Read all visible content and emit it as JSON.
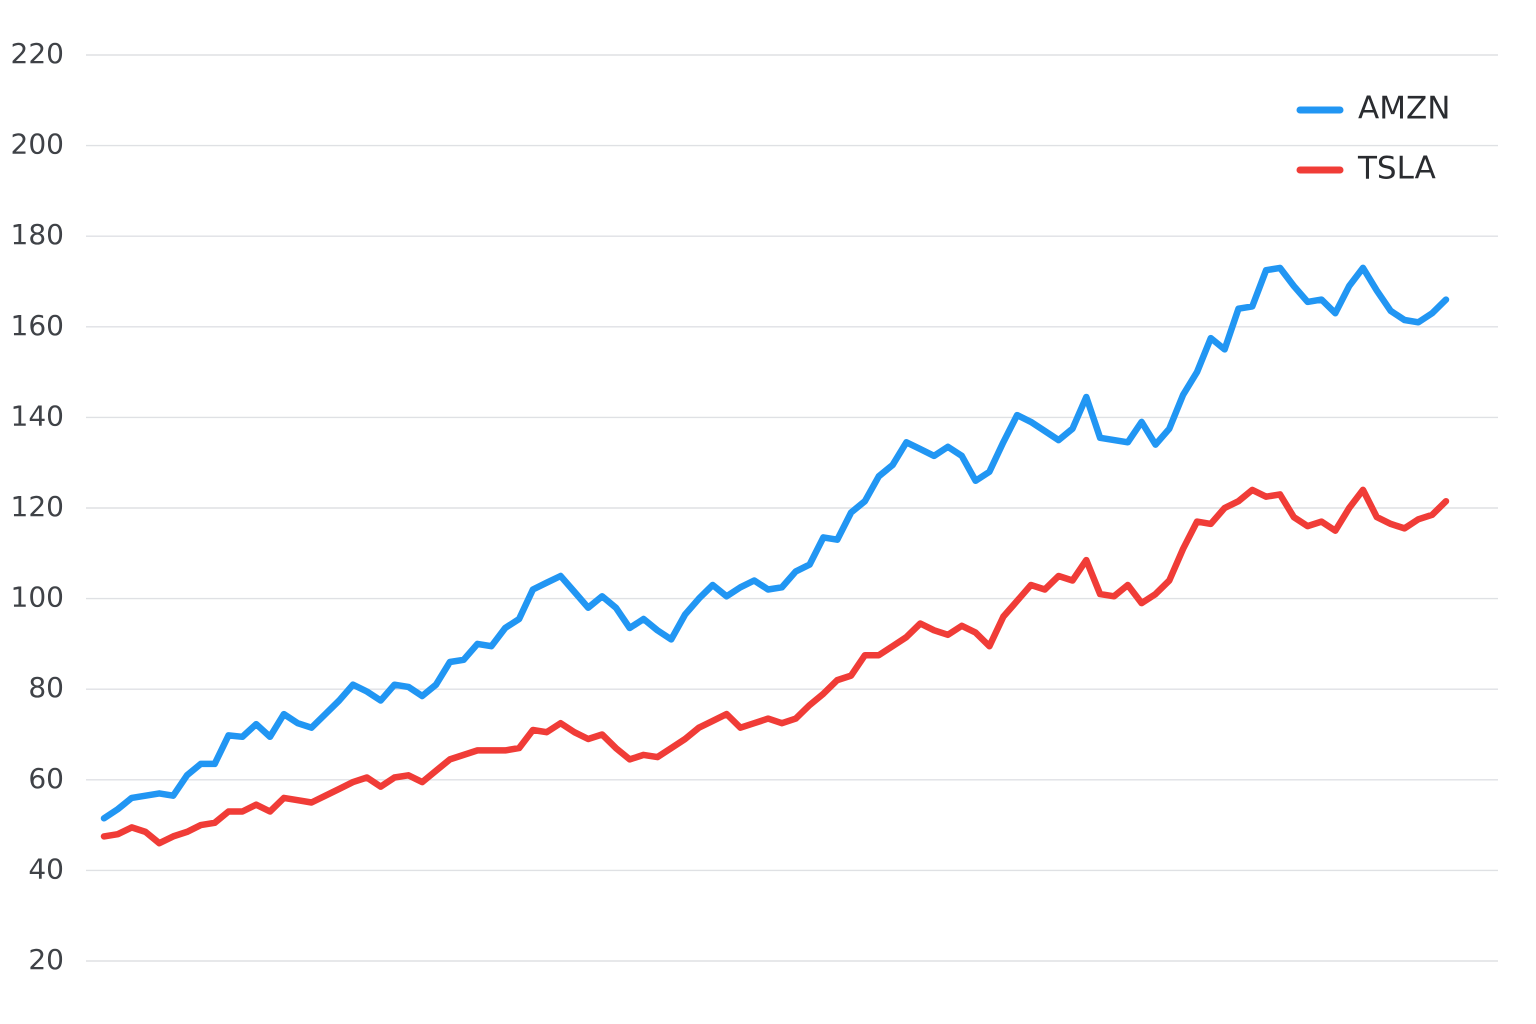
{
  "chart_data": {
    "type": "line",
    "title": "",
    "xlabel": "",
    "ylabel": "",
    "ylim": [
      20,
      220
    ],
    "y_ticks": [
      20,
      40,
      60,
      80,
      100,
      120,
      140,
      160,
      180,
      200,
      220
    ],
    "grid": true,
    "legend_position": "top-right",
    "x": [
      1,
      2,
      3,
      4,
      5,
      6,
      7,
      8,
      9,
      10,
      11,
      12,
      13,
      14,
      15,
      16,
      17,
      18,
      19,
      20,
      21,
      22,
      23,
      24,
      25,
      26,
      27,
      28,
      29,
      30,
      31,
      32,
      33,
      34,
      35,
      36,
      37,
      38,
      39,
      40,
      41,
      42,
      43,
      44,
      45,
      46,
      47,
      48,
      49,
      50,
      51,
      52,
      53,
      54,
      55,
      56,
      57,
      58,
      59,
      60,
      61,
      62,
      63,
      64,
      65,
      66,
      67,
      68,
      69,
      70,
      71,
      72,
      73,
      74,
      75,
      76,
      77,
      78,
      79,
      80,
      81,
      82,
      83,
      84,
      85,
      86,
      87,
      88,
      89,
      90,
      91,
      92,
      93,
      94,
      95,
      96,
      97,
      98
    ],
    "series": [
      {
        "name": "AMZN",
        "color": "#2196f3",
        "values": [
          51.5,
          53.5,
          56.0,
          56.5,
          57.0,
          56.5,
          61.0,
          63.5,
          63.5,
          69.8,
          69.5,
          72.3,
          69.5,
          74.5,
          72.5,
          71.5,
          74.5,
          77.5,
          81.0,
          79.5,
          77.5,
          81.0,
          80.5,
          78.5,
          81.0,
          86.0,
          86.5,
          90.0,
          89.5,
          93.5,
          95.5,
          102.0,
          103.5,
          105.0,
          101.5,
          98.0,
          100.5,
          98.0,
          93.5,
          95.5,
          93.0,
          91.0,
          96.5,
          100.0,
          103.0,
          100.5,
          102.5,
          104.0,
          102.0,
          102.5,
          106.0,
          107.5,
          113.5,
          113.0,
          119.0,
          121.5,
          127.0,
          129.5,
          134.5,
          133.0,
          131.5,
          133.5,
          131.5,
          126.0,
          128.0,
          134.5,
          140.5,
          139.0,
          137.0,
          135.0,
          137.5,
          144.5,
          135.5,
          135.0,
          134.5,
          139.0,
          134.0,
          137.5,
          145.0,
          150.0,
          157.5,
          155.0,
          164.0,
          164.5,
          172.5,
          173.0,
          169.0,
          165.5,
          166.0,
          163.0,
          169.0,
          173.0,
          168.0,
          163.5,
          161.5,
          161.0,
          163.0,
          166.0
        ]
      },
      {
        "name": "TSLA",
        "color": "#f03c37",
        "values": [
          47.5,
          48.0,
          49.5,
          48.5,
          46.0,
          47.5,
          48.5,
          50.0,
          50.5,
          53.0,
          53.0,
          54.5,
          53.0,
          56.0,
          55.5,
          55.0,
          56.5,
          58.0,
          59.5,
          60.5,
          58.5,
          60.5,
          61.0,
          59.5,
          62.0,
          64.5,
          65.5,
          66.5,
          66.5,
          66.5,
          67.0,
          71.0,
          70.5,
          72.5,
          70.5,
          69.0,
          70.0,
          67.0,
          64.5,
          65.5,
          65.0,
          67.0,
          69.0,
          71.5,
          73.0,
          74.5,
          71.5,
          72.5,
          73.5,
          72.5,
          73.5,
          76.5,
          79.0,
          82.0,
          83.0,
          87.5,
          87.5,
          89.5,
          91.5,
          94.5,
          93.0,
          92.0,
          94.0,
          92.5,
          89.5,
          96.0,
          99.5,
          103.0,
          102.0,
          105.0,
          104.0,
          108.5,
          101.0,
          100.5,
          103.0,
          99.0,
          101.0,
          104.0,
          111.0,
          117.0,
          116.5,
          120.0,
          121.5,
          124.0,
          122.5,
          123.0,
          118.0,
          116.0,
          117.0,
          115.0,
          120.0,
          124.0,
          118.0,
          116.5,
          115.5,
          117.5,
          118.5,
          121.5
        ]
      }
    ]
  }
}
